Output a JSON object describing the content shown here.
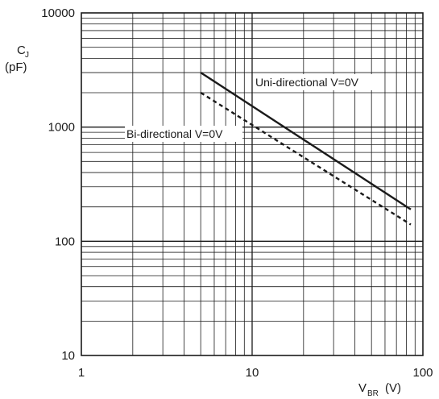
{
  "chart_data": {
    "type": "line",
    "x_scale": "log",
    "y_scale": "log",
    "xlim": [
      1,
      100
    ],
    "ylim": [
      10,
      10000
    ],
    "grid": true,
    "x_tick_labels": [
      "1",
      "10",
      "100"
    ],
    "y_tick_labels": [
      "10",
      "100",
      "1000",
      "10000"
    ],
    "ylabel": {
      "main": "C",
      "sub": "J",
      "unit": "(pF)"
    },
    "xlabel": {
      "main": "V",
      "sub": "BR",
      "unit": "(V)"
    },
    "series": [
      {
        "name": "Uni-directional V=0V",
        "style": "solid",
        "x": [
          5,
          85
        ],
        "y": [
          3000,
          190
        ]
      },
      {
        "name": "Bi-directional V=0V",
        "style": "dashed",
        "x": [
          5,
          85
        ],
        "y": [
          2000,
          140
        ]
      }
    ],
    "colors": {
      "line": "#1a1a1a",
      "grid": "#1a1a1a"
    }
  }
}
